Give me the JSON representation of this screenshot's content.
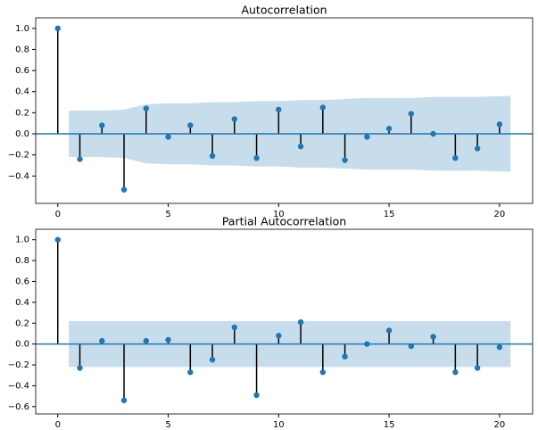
{
  "chart_data": [
    {
      "type": "stem",
      "title": "Autocorrelation",
      "color": "#1f77b4",
      "x": [
        0,
        1,
        2,
        3,
        4,
        5,
        6,
        7,
        8,
        9,
        10,
        11,
        12,
        13,
        14,
        15,
        16,
        17,
        18,
        19,
        20
      ],
      "values": [
        1.0,
        -0.24,
        0.08,
        -0.53,
        0.24,
        -0.03,
        0.08,
        -0.21,
        0.14,
        -0.23,
        0.23,
        -0.12,
        0.25,
        -0.25,
        -0.03,
        0.05,
        0.19,
        0.0,
        -0.23,
        -0.14,
        0.09
      ],
      "band": {
        "x": [
          0.5,
          2,
          3,
          4,
          5,
          6,
          7,
          8,
          9,
          10,
          11,
          12,
          13,
          14,
          15,
          16,
          17,
          18,
          19,
          20.5
        ],
        "upper": [
          0.22,
          0.22,
          0.23,
          0.28,
          0.29,
          0.29,
          0.3,
          0.3,
          0.31,
          0.31,
          0.32,
          0.32,
          0.33,
          0.34,
          0.34,
          0.34,
          0.35,
          0.35,
          0.35,
          0.36
        ],
        "lower": [
          -0.22,
          -0.22,
          -0.23,
          -0.28,
          -0.29,
          -0.29,
          -0.3,
          -0.3,
          -0.31,
          -0.31,
          -0.32,
          -0.32,
          -0.33,
          -0.34,
          -0.34,
          -0.34,
          -0.35,
          -0.35,
          -0.35,
          -0.36
        ]
      },
      "xlim": [
        -1,
        21.5
      ],
      "ylim": [
        -0.66,
        1.1
      ],
      "xticks": [
        0,
        5,
        10,
        15,
        20
      ],
      "yticks": [
        {
          "value": -0.4,
          "label": "−0.4"
        },
        {
          "value": -0.2,
          "label": "−0.2"
        },
        {
          "value": 0,
          "label": "0.0"
        },
        0.2,
        0.4,
        0.6,
        0.8,
        {
          "value": 1,
          "label": "1.0"
        }
      ]
    },
    {
      "type": "stem",
      "title": "Partial Autocorrelation",
      "color": "#1f77b4",
      "x": [
        0,
        1,
        2,
        3,
        4,
        5,
        6,
        7,
        8,
        9,
        10,
        11,
        12,
        13,
        14,
        15,
        16,
        17,
        18,
        19,
        20
      ],
      "values": [
        1.0,
        -0.23,
        0.03,
        -0.54,
        0.03,
        0.04,
        -0.27,
        -0.15,
        0.16,
        -0.49,
        0.08,
        0.21,
        -0.27,
        -0.12,
        0.0,
        0.13,
        -0.02,
        0.07,
        -0.27,
        -0.23,
        -0.03
      ],
      "band": {
        "x": [
          0.5,
          20.5
        ],
        "upper": [
          0.22,
          0.22
        ],
        "lower": [
          -0.22,
          -0.22
        ]
      },
      "xlim": [
        -1,
        21.5
      ],
      "ylim": [
        -0.67,
        1.1
      ],
      "xticks": [
        0,
        5,
        10,
        15,
        20
      ],
      "yticks": [
        {
          "value": -0.6,
          "label": "−0.6"
        },
        {
          "value": -0.4,
          "label": "−0.4"
        },
        {
          "value": -0.2,
          "label": "−0.2"
        },
        {
          "value": 0,
          "label": "0.0"
        },
        0.2,
        0.4,
        0.6,
        0.8,
        {
          "value": 1,
          "label": "1.0"
        }
      ]
    }
  ]
}
